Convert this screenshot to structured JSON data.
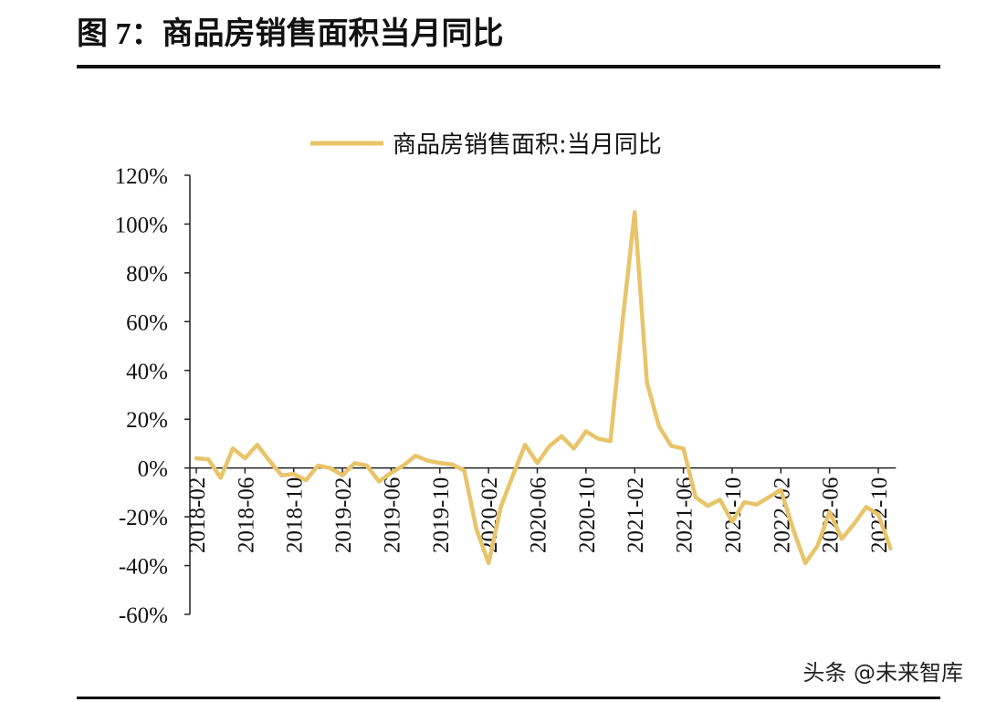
{
  "chart_data": {
    "type": "line",
    "title": "图 7：商品房销售面积当月同比",
    "watermark": "头条 @未来智库",
    "categories": [
      "2018-02",
      null,
      null,
      null,
      "2018-06",
      null,
      null,
      null,
      "2018-10",
      null,
      null,
      null,
      "2019-02",
      null,
      null,
      null,
      "2019-06",
      null,
      null,
      null,
      "2019-10",
      null,
      null,
      null,
      "2020-02",
      null,
      null,
      null,
      "2020-06",
      null,
      null,
      null,
      "2020-10",
      null,
      null,
      null,
      "2021-02",
      null,
      null,
      null,
      "2021-06",
      null,
      null,
      null,
      "2021-10",
      null,
      null,
      null,
      "2022-02",
      null,
      null,
      null,
      "2022-06",
      null,
      null,
      null,
      "2022-10",
      null
    ],
    "series": [
      {
        "name": "商品房销售面积:当月同比",
        "color": "#e8c46a",
        "values": [
          4,
          3.5,
          -4,
          8,
          4,
          9.5,
          3,
          -3,
          -2.5,
          -5,
          1,
          0,
          -3,
          2,
          1,
          -5.5,
          -2,
          1,
          5,
          3,
          2,
          1.5,
          -1,
          -25,
          -39,
          -16,
          -3,
          9.5,
          2,
          9,
          13,
          8,
          15,
          12,
          11,
          60,
          104.9,
          35,
          17,
          9,
          8,
          -12,
          -15.5,
          -13,
          -22,
          -14,
          -15,
          -12,
          -9,
          -25,
          -39,
          -32,
          -18,
          -29,
          -23,
          -16,
          -19,
          -33
        ]
      }
    ],
    "ylim": [
      -60,
      120
    ],
    "yticks": [
      {
        "value": -60,
        "label": "-60%"
      },
      {
        "value": -40,
        "label": "-40%"
      },
      {
        "value": -20,
        "label": "-20%"
      },
      {
        "value": 0,
        "label": "0%"
      },
      {
        "value": 20,
        "label": "20%"
      },
      {
        "value": 40,
        "label": "40%"
      },
      {
        "value": 60,
        "label": "60%"
      },
      {
        "value": 80,
        "label": "80%"
      },
      {
        "value": 100,
        "label": "100%"
      },
      {
        "value": 120,
        "label": "120%"
      }
    ],
    "legend": "top"
  }
}
